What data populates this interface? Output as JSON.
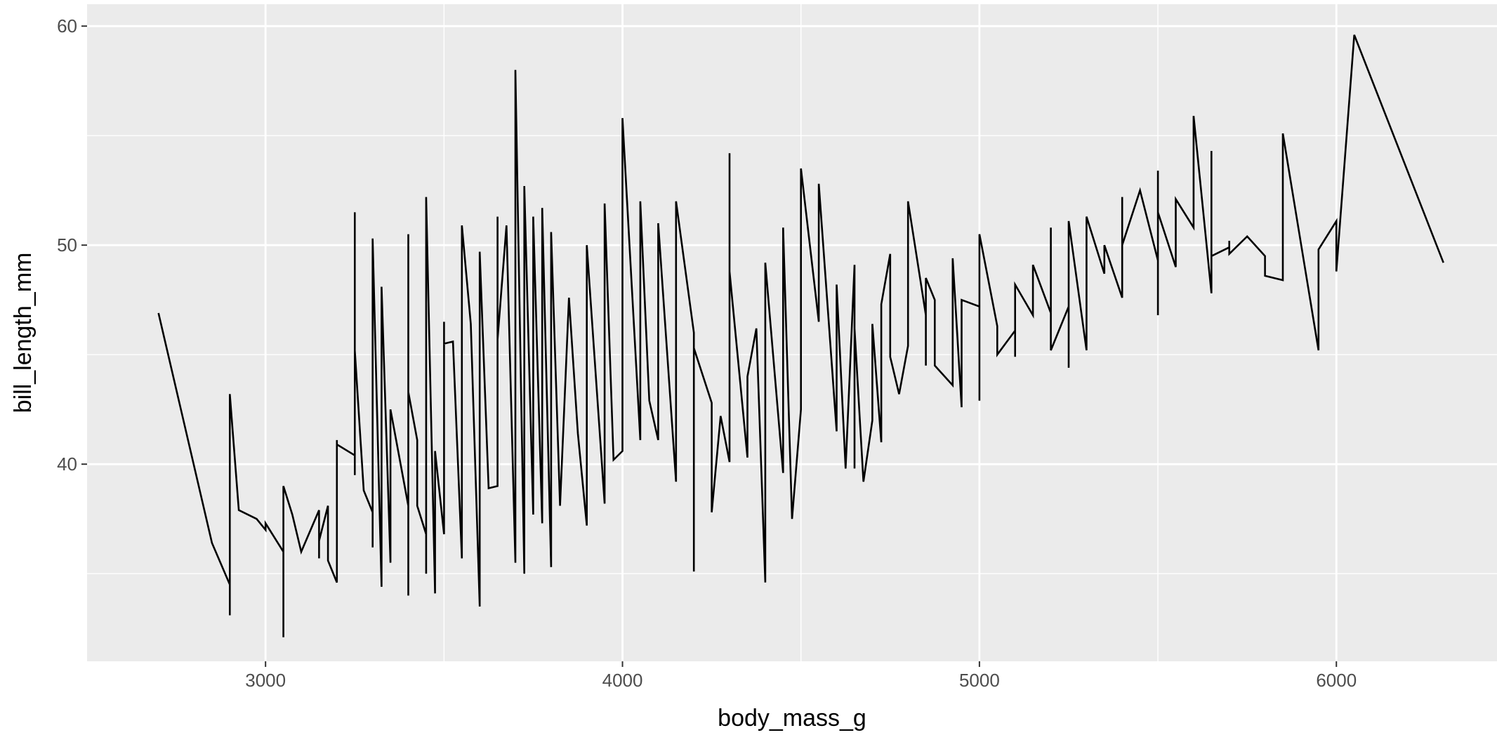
{
  "chart_data": {
    "type": "line",
    "title": "",
    "xlabel": "body_mass_g",
    "ylabel": "bill_length_mm",
    "xlim": [
      2500,
      6450
    ],
    "ylim": [
      31,
      61
    ],
    "x_ticks": [
      3000,
      4000,
      5000,
      6000
    ],
    "x_tick_labels": [
      "3000",
      "4000",
      "5000",
      "6000"
    ],
    "y_ticks": [
      40,
      50,
      60
    ],
    "y_tick_labels": [
      "40",
      "50",
      "60"
    ],
    "y_minor_ticks": [
      35,
      45,
      55
    ],
    "x_minor_ticks": [
      3500,
      4500,
      5500
    ],
    "grid": true,
    "legend": "none",
    "panel_color": "#ebebeb",
    "grid_color": "#ffffff",
    "line_color": "#000000",
    "series": [
      {
        "points": [
          [
            2700,
            46.9
          ],
          [
            2850,
            36.4
          ],
          [
            2900,
            34.5
          ],
          [
            2900,
            33.1
          ],
          [
            2900,
            43.2
          ],
          [
            2925,
            37.9
          ],
          [
            2975,
            37.5
          ],
          [
            3000,
            37.0
          ],
          [
            3000,
            37.3
          ],
          [
            3050,
            36.0
          ],
          [
            3050,
            32.1
          ],
          [
            3050,
            39.0
          ],
          [
            3075,
            37.7
          ],
          [
            3100,
            36.0
          ],
          [
            3150,
            37.9
          ],
          [
            3150,
            35.7
          ],
          [
            3150,
            36.5
          ],
          [
            3175,
            38.1
          ],
          [
            3175,
            35.6
          ],
          [
            3200,
            34.6
          ],
          [
            3200,
            41.1
          ],
          [
            3200,
            40.9
          ],
          [
            3250,
            40.4
          ],
          [
            3250,
            39.5
          ],
          [
            3250,
            51.5
          ],
          [
            3250,
            45.2
          ],
          [
            3275,
            38.8
          ],
          [
            3300,
            37.8
          ],
          [
            3300,
            36.2
          ],
          [
            3300,
            50.3
          ],
          [
            3325,
            34.4
          ],
          [
            3325,
            48.1
          ],
          [
            3350,
            35.5
          ],
          [
            3350,
            42.5
          ],
          [
            3400,
            38.1
          ],
          [
            3400,
            34.0
          ],
          [
            3400,
            50.5
          ],
          [
            3400,
            43.3
          ],
          [
            3425,
            41.1
          ],
          [
            3425,
            38.1
          ],
          [
            3450,
            36.8
          ],
          [
            3450,
            35.0
          ],
          [
            3450,
            52.2
          ],
          [
            3475,
            34.1
          ],
          [
            3475,
            40.6
          ],
          [
            3500,
            36.8
          ],
          [
            3500,
            46.5
          ],
          [
            3500,
            45.5
          ],
          [
            3525,
            45.6
          ],
          [
            3550,
            35.7
          ],
          [
            3550,
            50.9
          ],
          [
            3575,
            46.4
          ],
          [
            3600,
            33.5
          ],
          [
            3600,
            49.7
          ],
          [
            3625,
            38.9
          ],
          [
            3650,
            39.0
          ],
          [
            3650,
            51.3
          ],
          [
            3650,
            45.7
          ],
          [
            3675,
            50.9
          ],
          [
            3700,
            35.5
          ],
          [
            3700,
            58.0
          ],
          [
            3725,
            35.0
          ],
          [
            3725,
            52.7
          ],
          [
            3750,
            37.7
          ],
          [
            3750,
            51.3
          ],
          [
            3775,
            37.3
          ],
          [
            3775,
            51.7
          ],
          [
            3800,
            35.3
          ],
          [
            3800,
            50.6
          ],
          [
            3825,
            38.1
          ],
          [
            3850,
            47.6
          ],
          [
            3875,
            41.4
          ],
          [
            3900,
            37.2
          ],
          [
            3900,
            50.0
          ],
          [
            3950,
            38.2
          ],
          [
            3950,
            51.9
          ],
          [
            3975,
            40.2
          ],
          [
            4000,
            40.6
          ],
          [
            4000,
            55.8
          ],
          [
            4050,
            41.1
          ],
          [
            4050,
            52.0
          ],
          [
            4075,
            42.9
          ],
          [
            4100,
            41.1
          ],
          [
            4100,
            51.0
          ],
          [
            4150,
            39.2
          ],
          [
            4150,
            52.0
          ],
          [
            4200,
            46.0
          ],
          [
            4200,
            35.1
          ],
          [
            4200,
            45.3
          ],
          [
            4250,
            42.8
          ],
          [
            4250,
            37.8
          ],
          [
            4275,
            42.2
          ],
          [
            4300,
            40.1
          ],
          [
            4300,
            54.2
          ],
          [
            4300,
            48.8
          ],
          [
            4350,
            40.3
          ],
          [
            4350,
            44.0
          ],
          [
            4375,
            46.2
          ],
          [
            4400,
            34.6
          ],
          [
            4400,
            49.2
          ],
          [
            4450,
            39.6
          ],
          [
            4450,
            50.8
          ],
          [
            4475,
            37.5
          ],
          [
            4500,
            42.5
          ],
          [
            4500,
            53.5
          ],
          [
            4550,
            46.5
          ],
          [
            4550,
            52.8
          ],
          [
            4600,
            41.5
          ],
          [
            4600,
            48.2
          ],
          [
            4625,
            39.8
          ],
          [
            4650,
            49.1
          ],
          [
            4650,
            39.8
          ],
          [
            4650,
            46.2
          ],
          [
            4675,
            39.2
          ],
          [
            4700,
            42.0
          ],
          [
            4700,
            46.4
          ],
          [
            4725,
            41.0
          ],
          [
            4725,
            47.3
          ],
          [
            4750,
            49.6
          ],
          [
            4750,
            44.9
          ],
          [
            4775,
            43.2
          ],
          [
            4800,
            45.4
          ],
          [
            4800,
            52.0
          ],
          [
            4850,
            46.8
          ],
          [
            4850,
            44.5
          ],
          [
            4850,
            48.5
          ],
          [
            4875,
            47.5
          ],
          [
            4875,
            44.5
          ],
          [
            4925,
            43.6
          ],
          [
            4925,
            49.4
          ],
          [
            4950,
            42.6
          ],
          [
            4950,
            47.5
          ],
          [
            5000,
            47.2
          ],
          [
            5000,
            42.9
          ],
          [
            5000,
            50.5
          ],
          [
            5050,
            46.3
          ],
          [
            5050,
            45.0
          ],
          [
            5100,
            46.1
          ],
          [
            5100,
            44.9
          ],
          [
            5100,
            48.2
          ],
          [
            5150,
            46.8
          ],
          [
            5150,
            49.1
          ],
          [
            5200,
            46.9
          ],
          [
            5200,
            50.8
          ],
          [
            5200,
            45.2
          ],
          [
            5250,
            47.2
          ],
          [
            5250,
            44.4
          ],
          [
            5250,
            51.1
          ],
          [
            5300,
            45.2
          ],
          [
            5300,
            51.3
          ],
          [
            5350,
            48.7
          ],
          [
            5350,
            50.0
          ],
          [
            5400,
            47.6
          ],
          [
            5400,
            52.2
          ],
          [
            5400,
            50.0
          ],
          [
            5450,
            52.5
          ],
          [
            5500,
            49.3
          ],
          [
            5500,
            46.8
          ],
          [
            5500,
            53.4
          ],
          [
            5500,
            51.5
          ],
          [
            5550,
            49.0
          ],
          [
            5550,
            52.1
          ],
          [
            5600,
            50.8
          ],
          [
            5600,
            55.9
          ],
          [
            5650,
            47.8
          ],
          [
            5650,
            54.3
          ],
          [
            5650,
            49.5
          ],
          [
            5700,
            49.9
          ],
          [
            5700,
            50.2
          ],
          [
            5700,
            49.6
          ],
          [
            5750,
            50.4
          ],
          [
            5800,
            49.5
          ],
          [
            5800,
            48.6
          ],
          [
            5850,
            48.4
          ],
          [
            5850,
            55.1
          ],
          [
            5950,
            45.2
          ],
          [
            5950,
            49.8
          ],
          [
            6000,
            51.1
          ],
          [
            6000,
            48.8
          ],
          [
            6050,
            59.6
          ],
          [
            6300,
            49.2
          ]
        ]
      }
    ]
  }
}
